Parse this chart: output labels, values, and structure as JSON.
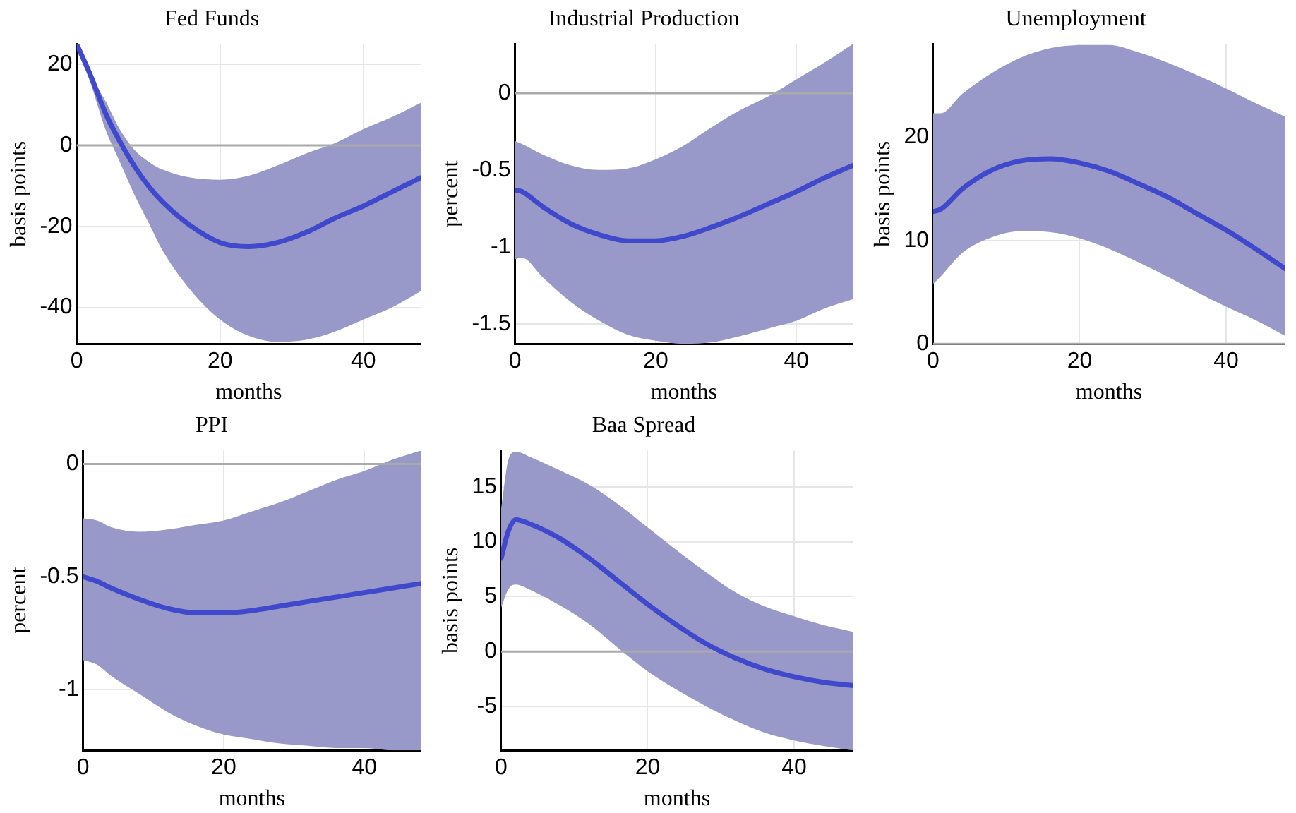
{
  "chart_data": [
    {
      "type": "line",
      "title": "Fed Funds",
      "xlabel": "months",
      "ylabel": "basis points",
      "xlim": [
        0,
        48
      ],
      "xticks": [
        0,
        20,
        40
      ],
      "ylim": [
        -49,
        25
      ],
      "yticks": [
        -40,
        -20,
        0,
        20
      ],
      "grid": true,
      "legend": false,
      "marker": "none",
      "ref_lines": [
        {
          "axis": "y",
          "value": 0,
          "color": "#aaaaaa"
        }
      ],
      "series": [
        {
          "color": "#4049cc",
          "x": [
            0,
            2,
            4,
            6,
            8,
            10,
            12,
            16,
            20,
            24,
            28,
            32,
            36,
            40,
            44,
            48
          ],
          "values": [
            25,
            17,
            8,
            1,
            -5,
            -10,
            -14,
            -20,
            -24,
            -25,
            -24,
            -21.5,
            -18,
            -15,
            -11.5,
            -8
          ],
          "upper": [
            25,
            17,
            11,
            4,
            -1,
            -4,
            -6,
            -8,
            -8.5,
            -7.5,
            -5,
            -2,
            0.5,
            4,
            7,
            10.5
          ],
          "lower": [
            25,
            15,
            4,
            -4,
            -12,
            -19,
            -26,
            -36,
            -43,
            -47,
            -48.5,
            -48,
            -46,
            -43,
            -40,
            -36
          ]
        }
      ]
    },
    {
      "type": "line",
      "title": "Industrial Production",
      "xlabel": "months",
      "ylabel": "percent",
      "xlim": [
        0,
        48
      ],
      "xticks": [
        0,
        20,
        40
      ],
      "ylim": [
        -1.63,
        0.32
      ],
      "yticks": [
        -1.5,
        -1,
        -0.5,
        0
      ],
      "grid": true,
      "legend": false,
      "marker": "none",
      "ref_lines": [
        {
          "axis": "y",
          "value": 0,
          "color": "#aaaaaa"
        }
      ],
      "series": [
        {
          "color": "#4049cc",
          "x": [
            0,
            1,
            4,
            8,
            12,
            16,
            20,
            24,
            28,
            32,
            36,
            40,
            44,
            48
          ],
          "values": [
            -0.63,
            -0.64,
            -0.74,
            -0.85,
            -0.92,
            -0.96,
            -0.96,
            -0.93,
            -0.87,
            -0.8,
            -0.72,
            -0.64,
            -0.55,
            -0.47
          ],
          "upper": [
            -0.31,
            -0.33,
            -0.4,
            -0.47,
            -0.5,
            -0.49,
            -0.43,
            -0.34,
            -0.22,
            -0.11,
            -0.02,
            0.09,
            0.2,
            0.32
          ],
          "lower": [
            -1.08,
            -1.07,
            -1.2,
            -1.36,
            -1.48,
            -1.57,
            -1.61,
            -1.63,
            -1.62,
            -1.58,
            -1.53,
            -1.48,
            -1.4,
            -1.34
          ]
        }
      ]
    },
    {
      "type": "line",
      "title": "Unemployment",
      "xlabel": "months",
      "ylabel": "basis points",
      "xlim": [
        0,
        48
      ],
      "xticks": [
        0,
        20,
        40
      ],
      "ylim": [
        0,
        29
      ],
      "yticks": [
        0,
        10,
        20
      ],
      "grid": true,
      "legend": false,
      "marker": "none",
      "ref_lines": [
        {
          "axis": "y",
          "value": 0,
          "color": "#aaaaaa"
        }
      ],
      "series": [
        {
          "color": "#4049cc",
          "x": [
            0,
            1,
            4,
            8,
            12,
            16,
            20,
            24,
            28,
            32,
            36,
            40,
            44,
            48
          ],
          "values": [
            12.8,
            13,
            15,
            16.8,
            17.7,
            17.9,
            17.5,
            16.7,
            15.5,
            14.2,
            12.6,
            11,
            9.2,
            7.3
          ],
          "upper": [
            22.3,
            22.3,
            24.2,
            26.2,
            27.7,
            28.6,
            28.9,
            28.9,
            28.2,
            27.2,
            26,
            24.7,
            23.3,
            22
          ],
          "lower": [
            5.8,
            6.5,
            8.8,
            10.3,
            10.9,
            10.8,
            10.2,
            9.2,
            7.9,
            6.5,
            5,
            3.6,
            2.3,
            0.8
          ]
        }
      ]
    },
    {
      "type": "line",
      "title": "PPI",
      "xlabel": "months",
      "ylabel": "percent",
      "xlim": [
        0,
        48
      ],
      "xticks": [
        0,
        20,
        40
      ],
      "ylim": [
        -1.27,
        0.06
      ],
      "yticks": [
        -1,
        -0.5,
        0
      ],
      "grid": true,
      "legend": false,
      "marker": "none",
      "ref_lines": [
        {
          "axis": "y",
          "value": 0,
          "color": "#aaaaaa"
        }
      ],
      "series": [
        {
          "color": "#4049cc",
          "x": [
            0,
            2,
            4,
            8,
            12,
            16,
            20,
            24,
            28,
            32,
            36,
            40,
            44,
            48
          ],
          "values": [
            -0.5,
            -0.52,
            -0.55,
            -0.6,
            -0.64,
            -0.66,
            -0.66,
            -0.65,
            -0.63,
            -0.61,
            -0.59,
            -0.57,
            -0.55,
            -0.53
          ],
          "upper": [
            -0.24,
            -0.25,
            -0.28,
            -0.3,
            -0.29,
            -0.27,
            -0.25,
            -0.21,
            -0.17,
            -0.12,
            -0.07,
            -0.03,
            0.02,
            0.06
          ],
          "lower": [
            -0.87,
            -0.89,
            -0.94,
            -1.02,
            -1.1,
            -1.16,
            -1.2,
            -1.22,
            -1.24,
            -1.25,
            -1.26,
            -1.26,
            -1.27,
            -1.27
          ]
        }
      ]
    },
    {
      "type": "line",
      "title": "Baa Spread",
      "xlabel": "months",
      "ylabel": "basis points",
      "xlim": [
        0,
        48
      ],
      "xticks": [
        0,
        20,
        40
      ],
      "ylim": [
        -9,
        18.3
      ],
      "yticks": [
        -5,
        0,
        5,
        10,
        15
      ],
      "grid": true,
      "legend": false,
      "marker": "none",
      "ref_lines": [
        {
          "axis": "y",
          "value": 0,
          "color": "#aaaaaa"
        }
      ],
      "series": [
        {
          "color": "#4049cc",
          "x": [
            0,
            1,
            2,
            4,
            8,
            12,
            16,
            20,
            24,
            28,
            32,
            36,
            40,
            44,
            48
          ],
          "values": [
            8.5,
            11,
            12,
            11.6,
            10.3,
            8.5,
            6.4,
            4.3,
            2.4,
            0.7,
            -0.6,
            -1.6,
            -2.3,
            -2.8,
            -3.1
          ],
          "upper": [
            13,
            17.5,
            18.2,
            17.7,
            16.5,
            15.2,
            13.4,
            11.3,
            9.2,
            7.2,
            5.4,
            4.1,
            3.2,
            2.4,
            1.8
          ],
          "lower": [
            4,
            5.7,
            6.1,
            5.6,
            4.2,
            2.5,
            0.3,
            -1.8,
            -3.5,
            -5,
            -6.3,
            -7.4,
            -8.1,
            -8.6,
            -9
          ]
        }
      ]
    }
  ]
}
